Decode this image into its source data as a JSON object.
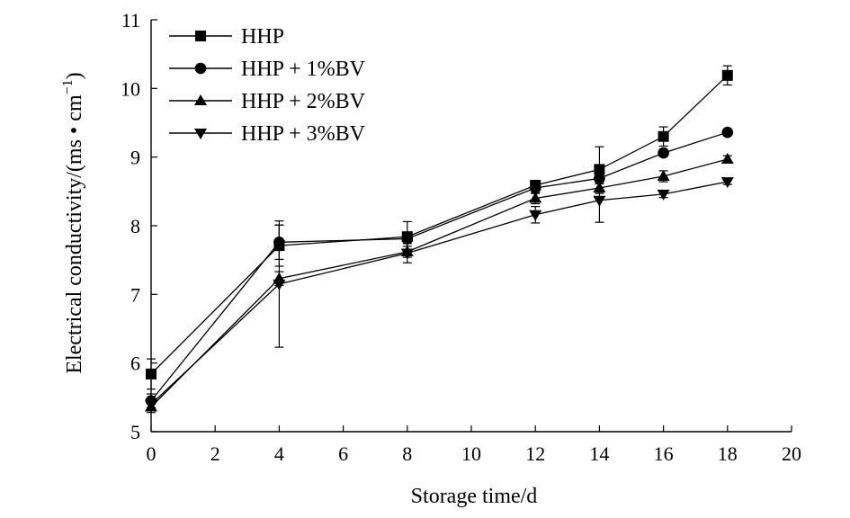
{
  "chart_data": {
    "type": "line",
    "xlabel": "Storage time/d",
    "ylabel": "Electrical conductivity/(ms • cm",
    "ylabel_sup": "−1",
    "ylabel_close": ")",
    "xlim": [
      0,
      20
    ],
    "ylim": [
      5,
      11
    ],
    "xticks": [
      0,
      2,
      4,
      6,
      8,
      10,
      12,
      14,
      16,
      18,
      20
    ],
    "yticks": [
      5,
      6,
      7,
      8,
      9,
      10,
      11
    ],
    "grid": false,
    "legend_position": "top-left",
    "x": [
      0,
      4,
      8,
      12,
      14,
      16,
      18
    ],
    "series": [
      {
        "name": "HHP",
        "marker": "square",
        "values": [
          5.84,
          7.71,
          7.84,
          8.59,
          8.82,
          9.3,
          10.19
        ],
        "errors": [
          0.22,
          0.3,
          0.22,
          0.05,
          0.33,
          0.14,
          0.14
        ]
      },
      {
        "name": "HHP + 1%BV",
        "marker": "circle",
        "values": [
          5.45,
          7.76,
          7.81,
          8.55,
          8.69,
          9.06,
          9.36
        ],
        "errors": [
          0.1,
          0.25,
          0.05,
          0.08,
          0.08,
          0.05,
          0.04
        ]
      },
      {
        "name": "HHP + 2%BV",
        "marker": "triangle-up",
        "values": [
          5.36,
          7.23,
          7.62,
          8.4,
          8.55,
          8.72,
          8.97
        ],
        "errors": [
          0.08,
          0.1,
          0.08,
          0.08,
          0.08,
          0.08,
          0.05
        ]
      },
      {
        "name": "HHP + 3%BV",
        "marker": "triangle-down",
        "values": [
          5.4,
          7.15,
          7.6,
          8.16,
          8.37,
          8.46,
          8.64
        ],
        "errors": [
          0.08,
          0.92,
          0.14,
          0.12,
          0.32,
          0.05,
          0.04
        ]
      }
    ]
  }
}
